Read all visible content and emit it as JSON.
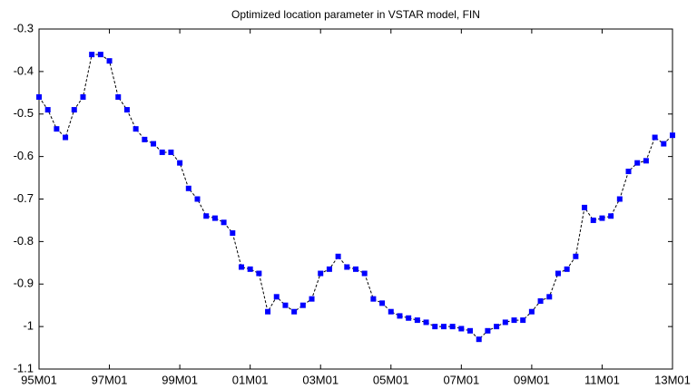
{
  "chart_data": {
    "type": "line",
    "title": "Optimized location parameter in VSTAR model, FIN",
    "x": [
      1995,
      1995.25,
      1995.5,
      1995.75,
      1996,
      1996.25,
      1996.5,
      1996.75,
      1997,
      1997.25,
      1997.5,
      1997.75,
      1998,
      1998.25,
      1998.5,
      1998.75,
      1999,
      1999.25,
      1999.5,
      1999.75,
      2000,
      2000.25,
      2000.5,
      2000.75,
      2001,
      2001.25,
      2001.5,
      2001.75,
      2002,
      2002.25,
      2002.5,
      2002.75,
      2003,
      2003.25,
      2003.5,
      2003.75,
      2004,
      2004.25,
      2004.5,
      2004.75,
      2005,
      2005.25,
      2005.5,
      2005.75,
      2006,
      2006.25,
      2006.5,
      2006.75,
      2007,
      2007.25,
      2007.5,
      2007.75,
      2008,
      2008.25,
      2008.5,
      2008.75,
      2009,
      2009.25,
      2009.5,
      2009.75,
      2010,
      2010.25,
      2010.5,
      2010.75,
      2011,
      2011.25,
      2011.5,
      2011.75,
      2012,
      2012.25,
      2012.5,
      2012.75,
      2013
    ],
    "series": [
      {
        "color": "#0000ff",
        "line_color": "#000000",
        "values": [
          -0.46,
          -0.49,
          -0.535,
          -0.555,
          -0.49,
          -0.46,
          -0.36,
          -0.36,
          -0.375,
          -0.46,
          -0.49,
          -0.535,
          -0.56,
          -0.57,
          -0.59,
          -0.59,
          -0.615,
          -0.675,
          -0.7,
          -0.74,
          -0.745,
          -0.755,
          -0.78,
          -0.86,
          -0.865,
          -0.875,
          -0.965,
          -0.93,
          -0.95,
          -0.965,
          -0.95,
          -0.935,
          -0.875,
          -0.865,
          -0.835,
          -0.86,
          -0.865,
          -0.875,
          -0.935,
          -0.945,
          -0.965,
          -0.975,
          -0.98,
          -0.985,
          -0.99,
          -1.0,
          -1.0,
          -1.0,
          -1.005,
          -1.01,
          -1.03,
          -1.01,
          -1.0,
          -0.99,
          -0.985,
          -0.985,
          -0.965,
          -0.94,
          -0.93,
          -0.875,
          -0.865,
          -0.835,
          -0.72,
          -0.75,
          -0.745,
          -0.74,
          -0.7,
          -0.635,
          -0.615,
          -0.61,
          -0.555,
          -0.57,
          -0.55
        ]
      }
    ],
    "xlim": [
      1995,
      2013
    ],
    "xticks": [
      {
        "value": 1995,
        "label": "95M01"
      },
      {
        "value": 1997,
        "label": "97M01"
      },
      {
        "value": 1999,
        "label": "99M01"
      },
      {
        "value": 2001,
        "label": "01M01"
      },
      {
        "value": 2003,
        "label": "03M01"
      },
      {
        "value": 2005,
        "label": "05M01"
      },
      {
        "value": 2007,
        "label": "07M01"
      },
      {
        "value": 2009,
        "label": "09M01"
      },
      {
        "value": 2011,
        "label": "11M01"
      },
      {
        "value": 2013,
        "label": "13M01"
      }
    ],
    "ylim": [
      -1.1,
      -0.3
    ],
    "yticks": [
      -1.1,
      -1,
      -0.9,
      -0.8,
      -0.7,
      -0.6,
      -0.5,
      -0.4,
      -0.3
    ],
    "grid": false
  }
}
